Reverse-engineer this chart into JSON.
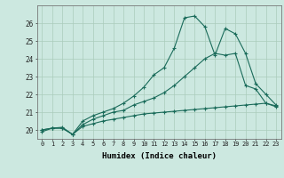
{
  "xlabel": "Humidex (Indice chaleur)",
  "ylabel": "",
  "xlim": [
    -0.5,
    23.5
  ],
  "ylim": [
    19.5,
    27.0
  ],
  "yticks": [
    20,
    21,
    22,
    23,
    24,
    25,
    26
  ],
  "xticks": [
    0,
    1,
    2,
    3,
    4,
    5,
    6,
    7,
    8,
    9,
    10,
    11,
    12,
    13,
    14,
    15,
    16,
    17,
    18,
    19,
    20,
    21,
    22,
    23
  ],
  "bg_color": "#cce8e0",
  "grid_color": "#aaccbb",
  "line_color": "#1a6b5a",
  "line1_x": [
    0,
    1,
    2,
    3,
    4,
    5,
    6,
    7,
    8,
    9,
    10,
    11,
    12,
    13,
    14,
    15,
    16,
    17,
    18,
    19,
    20,
    21,
    22,
    23
  ],
  "line1_y": [
    19.9,
    20.1,
    20.15,
    19.75,
    20.2,
    20.35,
    20.5,
    20.6,
    20.7,
    20.8,
    20.9,
    20.95,
    21.0,
    21.05,
    21.1,
    21.15,
    21.2,
    21.25,
    21.3,
    21.35,
    21.4,
    21.45,
    21.5,
    21.35
  ],
  "line2_x": [
    0,
    1,
    2,
    3,
    4,
    5,
    6,
    7,
    8,
    9,
    10,
    11,
    12,
    13,
    14,
    15,
    16,
    17,
    18,
    19,
    20,
    21,
    22,
    23
  ],
  "line2_y": [
    20.0,
    20.1,
    20.1,
    19.75,
    20.3,
    20.6,
    20.8,
    21.0,
    21.1,
    21.4,
    21.6,
    21.8,
    22.1,
    22.5,
    23.0,
    23.5,
    24.0,
    24.3,
    24.2,
    24.3,
    22.5,
    22.3,
    21.5,
    21.3
  ],
  "line3_x": [
    0,
    1,
    2,
    3,
    4,
    5,
    6,
    7,
    8,
    9,
    10,
    11,
    12,
    13,
    14,
    15,
    16,
    17,
    18,
    19,
    20,
    21,
    22,
    23
  ],
  "line3_y": [
    20.0,
    20.1,
    20.1,
    19.75,
    20.5,
    20.8,
    21.0,
    21.2,
    21.5,
    21.9,
    22.4,
    23.1,
    23.5,
    24.6,
    26.3,
    26.4,
    25.8,
    24.2,
    25.7,
    25.4,
    24.3,
    22.6,
    22.0,
    21.4
  ]
}
